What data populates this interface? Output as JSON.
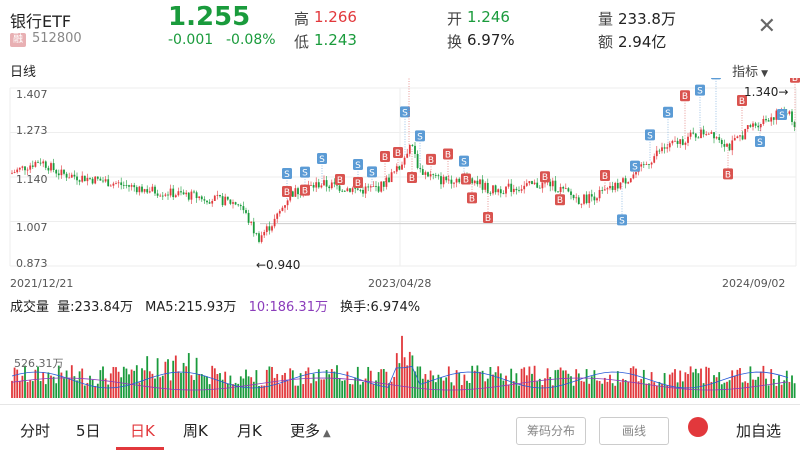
{
  "header": {
    "name": "银行ETF",
    "badge": "融",
    "code": "512800",
    "price": "1.255",
    "change": "-0.001",
    "change_pct": "-0.08%",
    "high_label": "高",
    "high": "1.266",
    "low_label": "低",
    "low": "1.243",
    "open_label": "开",
    "open": "1.246",
    "turnover_label": "换",
    "turnover": "6.97%",
    "volume_label": "量",
    "volume": "233.8万",
    "amount_label": "额",
    "amount": "2.94亿",
    "close_icon": "close-icon"
  },
  "kline": {
    "period_label": "日线",
    "indicator_label": "指标",
    "y_ticks": [
      "1.407",
      "1.273",
      "1.140",
      "1.007",
      "0.873"
    ],
    "dates": [
      "2021/12/21",
      "2023/04/28",
      "2024/09/02"
    ],
    "low_marker": "←0.940",
    "high_marker": "1.340→"
  },
  "volume": {
    "title": "成交量",
    "vol_label": "量:233.84万",
    "ma5_label": "MA5:215.93万",
    "ma10_label": "10:186.31万",
    "turnover_label": "换手:6.974%",
    "axis_label": "526.31万"
  },
  "tabs": {
    "items": [
      "分时",
      "5日",
      "日K",
      "周K",
      "月K",
      "更多"
    ],
    "active": "日K",
    "chip_label": "筹码分布",
    "draw_label": "画线",
    "add_label": "加自选"
  },
  "chart_data": {
    "type": "candlestick",
    "ylim": [
      0.873,
      1.407
    ],
    "x_start": "2021/12/21",
    "x_end": "2024/09/02",
    "min_value": 0.94,
    "max_value": 1.34,
    "last_close": 1.255
  },
  "colors": {
    "up": "#e2383c",
    "down": "#1a9b3c",
    "buy": "#d9534f",
    "sell": "#5b9bd5"
  }
}
